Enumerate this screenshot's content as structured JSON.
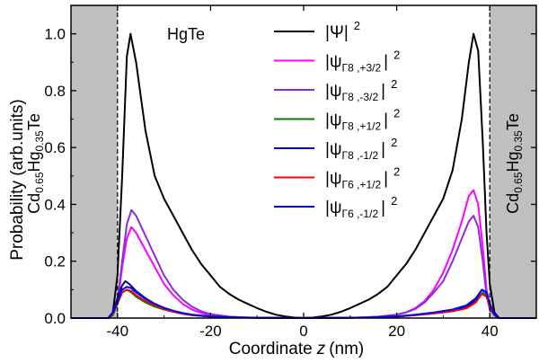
{
  "chart_data": {
    "type": "line",
    "xlabel": "Coordinate",
    "xlabel_var": "z",
    "xlabel_unit": "(nm)",
    "ylabel": "Probability (arb.units)",
    "xlim": [
      -50,
      50
    ],
    "ylim": [
      0,
      1.1
    ],
    "xticks": [
      -40,
      -20,
      0,
      20,
      40
    ],
    "yticks": [
      0.0,
      0.2,
      0.4,
      0.6,
      0.8,
      1.0
    ],
    "grid": false,
    "legend_position": "top-center",
    "barrier_boundaries": [
      -40,
      40
    ],
    "barrier_color": "#c0c0c0",
    "regions": {
      "well": "HgTe",
      "barrier": {
        "a": "Cd",
        "a_sub": "0.65",
        "b": "Hg",
        "b_sub": "0.35",
        "c": "Te"
      }
    },
    "series": [
      {
        "legend": {
          "base": "Ψ",
          "sub": ""
        },
        "color": "#000000",
        "points": [
          [
            -50,
            0
          ],
          [
            -42,
            0
          ],
          [
            -41,
            0.02
          ],
          [
            -40,
            0.15
          ],
          [
            -39,
            0.5
          ],
          [
            -38,
            0.92
          ],
          [
            -37.2,
            1.0
          ],
          [
            -36,
            0.9
          ],
          [
            -34,
            0.66
          ],
          [
            -32,
            0.5
          ],
          [
            -30,
            0.42
          ],
          [
            -28,
            0.36
          ],
          [
            -26,
            0.3
          ],
          [
            -24,
            0.24
          ],
          [
            -22,
            0.19
          ],
          [
            -20,
            0.15
          ],
          [
            -18,
            0.11
          ],
          [
            -16,
            0.085
          ],
          [
            -14,
            0.065
          ],
          [
            -12,
            0.05
          ],
          [
            -10,
            0.035
          ],
          [
            -8,
            0.022
          ],
          [
            -6,
            0.012
          ],
          [
            -4,
            0.006
          ],
          [
            -2,
            0.002
          ],
          [
            0,
            0.001
          ],
          [
            2,
            0.002
          ],
          [
            4,
            0.006
          ],
          [
            6,
            0.012
          ],
          [
            8,
            0.022
          ],
          [
            10,
            0.035
          ],
          [
            12,
            0.05
          ],
          [
            14,
            0.065
          ],
          [
            16,
            0.085
          ],
          [
            18,
            0.11
          ],
          [
            20,
            0.15
          ],
          [
            22,
            0.19
          ],
          [
            24,
            0.24
          ],
          [
            26,
            0.3
          ],
          [
            28,
            0.36
          ],
          [
            30,
            0.42
          ],
          [
            32,
            0.52
          ],
          [
            34,
            0.7
          ],
          [
            35.5,
            0.9
          ],
          [
            36.5,
            1.0
          ],
          [
            37.5,
            0.94
          ],
          [
            38.5,
            0.62
          ],
          [
            39.3,
            0.3
          ],
          [
            40,
            0.12
          ],
          [
            41,
            0.02
          ],
          [
            42,
            0
          ],
          [
            50,
            0
          ]
        ]
      },
      {
        "legend": {
          "base": "ψ",
          "sub": "Γ8 ,+3/2"
        },
        "color": "#ff00ff",
        "points": [
          [
            -50,
            0
          ],
          [
            -42,
            0
          ],
          [
            -41,
            0.01
          ],
          [
            -40,
            0.05
          ],
          [
            -39,
            0.18
          ],
          [
            -38,
            0.28
          ],
          [
            -37,
            0.32
          ],
          [
            -36,
            0.3
          ],
          [
            -34,
            0.24
          ],
          [
            -32,
            0.18
          ],
          [
            -30,
            0.12
          ],
          [
            -28,
            0.08
          ],
          [
            -26,
            0.05
          ],
          [
            -24,
            0.03
          ],
          [
            -22,
            0.018
          ],
          [
            -20,
            0.01
          ],
          [
            -16,
            0.004
          ],
          [
            -10,
            0.001
          ],
          [
            0,
            0
          ],
          [
            10,
            0.001
          ],
          [
            16,
            0.004
          ],
          [
            20,
            0.012
          ],
          [
            22,
            0.02
          ],
          [
            24,
            0.035
          ],
          [
            26,
            0.06
          ],
          [
            28,
            0.1
          ],
          [
            30,
            0.16
          ],
          [
            32,
            0.24
          ],
          [
            34,
            0.34
          ],
          [
            35.5,
            0.43
          ],
          [
            36.5,
            0.45
          ],
          [
            37.5,
            0.4
          ],
          [
            38.5,
            0.25
          ],
          [
            39.3,
            0.1
          ],
          [
            40,
            0.04
          ],
          [
            41,
            0.01
          ],
          [
            42,
            0
          ],
          [
            50,
            0
          ]
        ]
      },
      {
        "legend": {
          "base": "ψ",
          "sub": "Γ8 ,-3/2"
        },
        "color": "#8a2be2",
        "points": [
          [
            -50,
            0
          ],
          [
            -42,
            0
          ],
          [
            -41,
            0.01
          ],
          [
            -40,
            0.06
          ],
          [
            -39,
            0.2
          ],
          [
            -38,
            0.33
          ],
          [
            -37,
            0.38
          ],
          [
            -36,
            0.36
          ],
          [
            -34,
            0.29
          ],
          [
            -32,
            0.22
          ],
          [
            -30,
            0.15
          ],
          [
            -28,
            0.1
          ],
          [
            -26,
            0.065
          ],
          [
            -24,
            0.04
          ],
          [
            -22,
            0.024
          ],
          [
            -20,
            0.014
          ],
          [
            -16,
            0.005
          ],
          [
            -10,
            0.001
          ],
          [
            0,
            0
          ],
          [
            10,
            0.001
          ],
          [
            16,
            0.005
          ],
          [
            20,
            0.012
          ],
          [
            22,
            0.02
          ],
          [
            24,
            0.032
          ],
          [
            26,
            0.055
          ],
          [
            28,
            0.09
          ],
          [
            30,
            0.13
          ],
          [
            32,
            0.2
          ],
          [
            34,
            0.28
          ],
          [
            35.5,
            0.34
          ],
          [
            36.5,
            0.36
          ],
          [
            37.5,
            0.32
          ],
          [
            38.5,
            0.2
          ],
          [
            39.3,
            0.08
          ],
          [
            40,
            0.03
          ],
          [
            41,
            0.01
          ],
          [
            42,
            0
          ],
          [
            50,
            0
          ]
        ]
      },
      {
        "legend": {
          "base": "ψ",
          "sub": "Γ8 ,+1/2"
        },
        "color": "#008000",
        "points": [
          [
            -50,
            0
          ],
          [
            -42,
            0
          ],
          [
            -41,
            0.01
          ],
          [
            -40,
            0.05
          ],
          [
            -39,
            0.09
          ],
          [
            -38,
            0.1
          ],
          [
            -37,
            0.09
          ],
          [
            -36,
            0.075
          ],
          [
            -34,
            0.055
          ],
          [
            -32,
            0.04
          ],
          [
            -30,
            0.03
          ],
          [
            -28,
            0.022
          ],
          [
            -26,
            0.015
          ],
          [
            -24,
            0.01
          ],
          [
            -20,
            0.005
          ],
          [
            -14,
            0.002
          ],
          [
            0,
            0
          ],
          [
            14,
            0.002
          ],
          [
            20,
            0.005
          ],
          [
            24,
            0.01
          ],
          [
            28,
            0.016
          ],
          [
            32,
            0.024
          ],
          [
            35,
            0.035
          ],
          [
            37,
            0.06
          ],
          [
            38.5,
            0.09
          ],
          [
            39.3,
            0.08
          ],
          [
            40,
            0.04
          ],
          [
            41,
            0.01
          ],
          [
            42,
            0
          ],
          [
            50,
            0
          ]
        ]
      },
      {
        "legend": {
          "base": "ψ",
          "sub": "Γ8 ,-1/2"
        },
        "color": "#00008b",
        "points": [
          [
            -50,
            0
          ],
          [
            -42,
            0
          ],
          [
            -41,
            0.02
          ],
          [
            -40,
            0.07
          ],
          [
            -39,
            0.115
          ],
          [
            -38.3,
            0.13
          ],
          [
            -37.5,
            0.12
          ],
          [
            -36,
            0.095
          ],
          [
            -34,
            0.07
          ],
          [
            -32,
            0.05
          ],
          [
            -30,
            0.035
          ],
          [
            -28,
            0.025
          ],
          [
            -26,
            0.017
          ],
          [
            -24,
            0.011
          ],
          [
            -20,
            0.005
          ],
          [
            -14,
            0.002
          ],
          [
            0,
            0
          ],
          [
            14,
            0.002
          ],
          [
            20,
            0.005
          ],
          [
            24,
            0.011
          ],
          [
            28,
            0.018
          ],
          [
            32,
            0.028
          ],
          [
            35,
            0.04
          ],
          [
            37,
            0.065
          ],
          [
            38.3,
            0.1
          ],
          [
            39.3,
            0.09
          ],
          [
            40,
            0.05
          ],
          [
            41,
            0.015
          ],
          [
            42,
            0
          ],
          [
            50,
            0
          ]
        ]
      },
      {
        "legend": {
          "base": "ψ",
          "sub": "Γ6 ,+1/2"
        },
        "color": "#ff0000",
        "points": [
          [
            -50,
            0
          ],
          [
            -42,
            0
          ],
          [
            -41,
            0.015
          ],
          [
            -40,
            0.055
          ],
          [
            -39,
            0.09
          ],
          [
            -38,
            0.1
          ],
          [
            -37,
            0.095
          ],
          [
            -36,
            0.08
          ],
          [
            -34,
            0.06
          ],
          [
            -32,
            0.045
          ],
          [
            -30,
            0.032
          ],
          [
            -28,
            0.022
          ],
          [
            -26,
            0.015
          ],
          [
            -24,
            0.01
          ],
          [
            -20,
            0.005
          ],
          [
            -14,
            0.002
          ],
          [
            0,
            0
          ],
          [
            14,
            0.002
          ],
          [
            20,
            0.005
          ],
          [
            24,
            0.01
          ],
          [
            28,
            0.016
          ],
          [
            32,
            0.024
          ],
          [
            35,
            0.034
          ],
          [
            37,
            0.055
          ],
          [
            38.3,
            0.085
          ],
          [
            39.3,
            0.075
          ],
          [
            40,
            0.04
          ],
          [
            41,
            0.01
          ],
          [
            42,
            0
          ],
          [
            50,
            0
          ]
        ]
      },
      {
        "legend": {
          "base": "ψ",
          "sub": "Γ6 ,-1/2"
        },
        "color": "#0000ff",
        "points": [
          [
            -50,
            0
          ],
          [
            -42,
            0
          ],
          [
            -41,
            0.02
          ],
          [
            -40,
            0.06
          ],
          [
            -39,
            0.1
          ],
          [
            -38,
            0.11
          ],
          [
            -37,
            0.105
          ],
          [
            -36,
            0.09
          ],
          [
            -34,
            0.068
          ],
          [
            -32,
            0.05
          ],
          [
            -30,
            0.036
          ],
          [
            -28,
            0.026
          ],
          [
            -26,
            0.018
          ],
          [
            -24,
            0.012
          ],
          [
            -20,
            0.006
          ],
          [
            -14,
            0.002
          ],
          [
            0,
            0
          ],
          [
            14,
            0.002
          ],
          [
            20,
            0.006
          ],
          [
            24,
            0.012
          ],
          [
            28,
            0.02
          ],
          [
            32,
            0.03
          ],
          [
            35,
            0.045
          ],
          [
            37,
            0.07
          ],
          [
            38.3,
            0.1
          ],
          [
            39.3,
            0.09
          ],
          [
            40,
            0.05
          ],
          [
            41,
            0.012
          ],
          [
            42,
            0
          ],
          [
            50,
            0
          ]
        ]
      }
    ],
    "legend_sup": "2"
  }
}
